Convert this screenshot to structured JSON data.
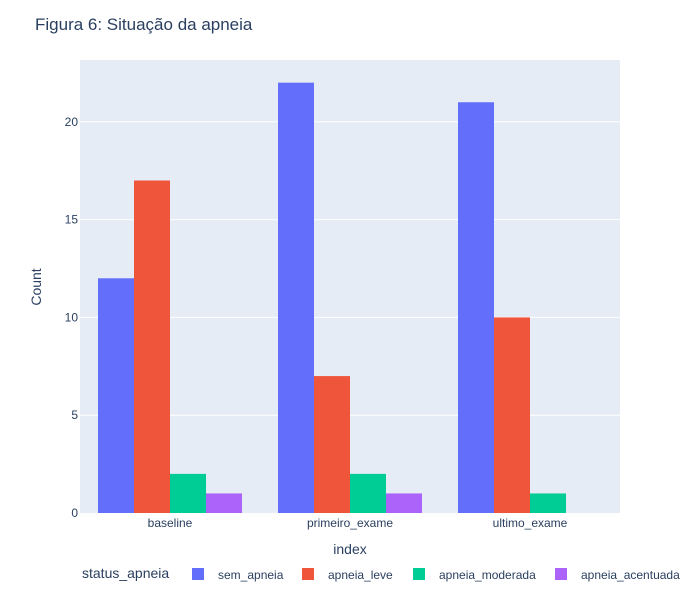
{
  "chart_data": {
    "type": "bar",
    "title": "Figura 6: Situação da apneia",
    "xlabel": "index",
    "ylabel": "Count",
    "categories": [
      "baseline",
      "primeiro_exame",
      "ultimo_exame"
    ],
    "series": [
      {
        "name": "sem_apneia",
        "values": [
          12,
          22,
          21
        ],
        "color": "#636efa"
      },
      {
        "name": "apneia_leve",
        "values": [
          17,
          7,
          10
        ],
        "color": "#ef553b"
      },
      {
        "name": "apneia_moderada",
        "values": [
          2,
          2,
          1
        ],
        "color": "#00cc96"
      },
      {
        "name": "apneia_acentuada",
        "values": [
          1,
          1,
          0
        ],
        "color": "#ab63fa"
      }
    ],
    "ylim": [
      0,
      23.16
    ],
    "yticks": [
      0,
      5,
      10,
      15,
      20
    ],
    "grid": true,
    "legend": {
      "title": "status_apneia",
      "placement": "bottom"
    },
    "colors": {
      "plot_background": "#e5ecf6",
      "grid": "#ffffff",
      "text": "#2a3f5f"
    }
  }
}
